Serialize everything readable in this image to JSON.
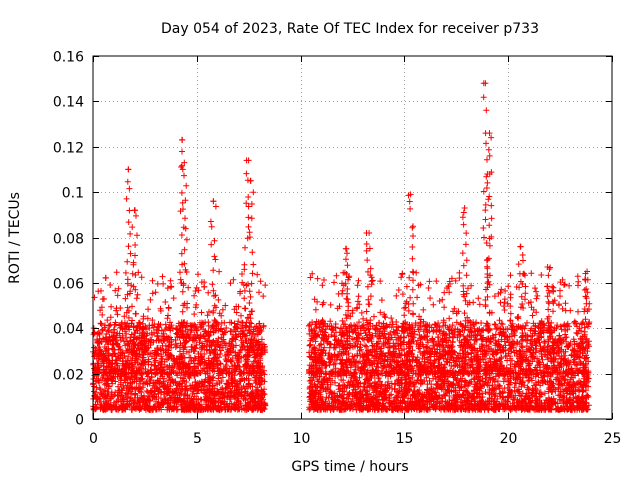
{
  "chart_data": {
    "type": "scatter",
    "title": "Day 054 of 2023, Rate Of TEC Index for receiver p733",
    "xlabel": "GPS time / hours",
    "ylabel": "ROTI / TECUs",
    "xlim": [
      0,
      25
    ],
    "ylim": [
      0,
      0.16
    ],
    "xticks": [
      0,
      5,
      10,
      15,
      20,
      25
    ],
    "xtick_labels": [
      "0",
      "5",
      "10",
      "15",
      "20",
      "25"
    ],
    "yticks": [
      0,
      0.02,
      0.04,
      0.06,
      0.08,
      0.1,
      0.12,
      0.14,
      0.16
    ],
    "ytick_labels": [
      "0",
      "0.02",
      "0.04",
      "0.06",
      "0.08",
      "0.1",
      "0.12",
      "0.14",
      "0.16"
    ],
    "grid": true,
    "marker": "+",
    "marker_color": "#ff0000",
    "series": [
      {
        "name": "ROTI",
        "segments": [
          {
            "x_range": [
              0.0,
              8.3
            ],
            "baseline_range": [
              0.004,
              0.035
            ]
          },
          {
            "x_range": [
              10.4,
              23.9
            ],
            "baseline_range": [
              0.004,
              0.035
            ]
          }
        ],
        "peaks": [
          {
            "x": 1.7,
            "y": 0.11
          },
          {
            "x": 2.0,
            "y": 0.092
          },
          {
            "x": 4.3,
            "y": 0.123
          },
          {
            "x": 4.4,
            "y": 0.113
          },
          {
            "x": 5.8,
            "y": 0.096
          },
          {
            "x": 7.4,
            "y": 0.114
          },
          {
            "x": 7.6,
            "y": 0.105
          },
          {
            "x": 12.2,
            "y": 0.075
          },
          {
            "x": 13.3,
            "y": 0.082
          },
          {
            "x": 15.3,
            "y": 0.099
          },
          {
            "x": 17.9,
            "y": 0.093
          },
          {
            "x": 18.9,
            "y": 0.148
          },
          {
            "x": 19.1,
            "y": 0.126
          },
          {
            "x": 19.0,
            "y": 0.108
          },
          {
            "x": 20.6,
            "y": 0.076
          },
          {
            "x": 21.9,
            "y": 0.067
          },
          {
            "x": 23.8,
            "y": 0.065
          }
        ]
      }
    ]
  }
}
